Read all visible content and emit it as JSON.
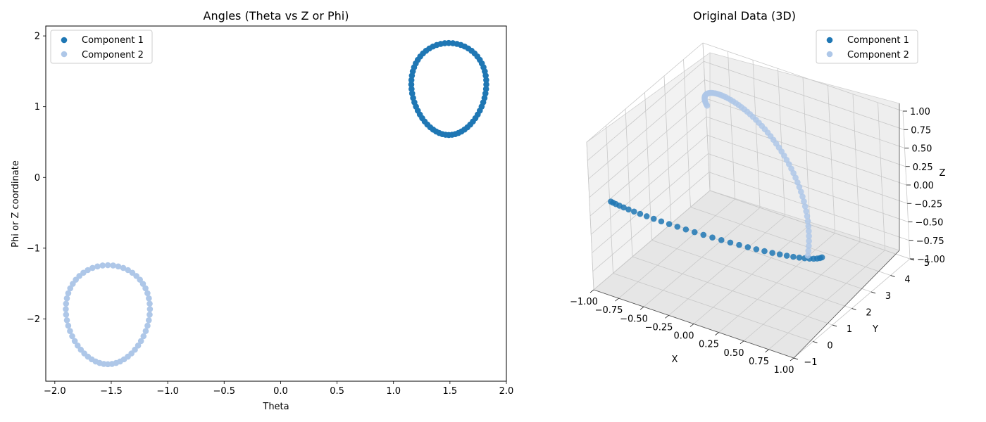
{
  "colors": {
    "component_1": "#1f77b4",
    "component_2": "#aec7e8",
    "axis": "#000000",
    "pane_grid": "#cccccc"
  },
  "chart_data": [
    {
      "type": "scatter",
      "title": "Angles (Theta vs Z or Phi)",
      "xlabel": "Theta",
      "ylabel": "Phi or Z coordinate",
      "xlim": [
        -2.08,
        2.0
      ],
      "ylim": [
        -2.88,
        2.14
      ],
      "xticks": [
        -2.0,
        -1.5,
        -1.0,
        -0.5,
        0.0,
        0.5,
        1.0,
        1.5,
        2.0
      ],
      "xtick_labels": [
        "−2.0",
        "−1.5",
        "−1.0",
        "−0.5",
        "0.0",
        "0.5",
        "1.0",
        "1.5",
        "2.0"
      ],
      "yticks": [
        -2,
        -1,
        0,
        1,
        2
      ],
      "ytick_labels": [
        "−2",
        "−1",
        "0",
        "1",
        "2"
      ],
      "grid": false,
      "legend_position": "upper left",
      "series": [
        {
          "name": "Component 1",
          "color": "#1f77b4",
          "shape": {
            "kind": "ellipse",
            "cx": 1.49,
            "cy": 1.25,
            "rx": 0.33,
            "ry": 0.65,
            "n": 64
          }
        },
        {
          "name": "Component 2",
          "color": "#aec7e8",
          "shape": {
            "kind": "ellipse",
            "cx": -1.53,
            "cy": -1.94,
            "rx": 0.37,
            "ry": 0.7,
            "n": 56
          }
        }
      ]
    },
    {
      "type": "scatter3d",
      "title": "Original Data (3D)",
      "xlabel": "X",
      "ylabel": "Y",
      "zlabel": "Z",
      "xlim": [
        -1.0,
        1.0
      ],
      "ylim": [
        -1.0,
        5.0
      ],
      "zlim": [
        -1.0,
        1.0
      ],
      "xticks": [
        -1.0,
        -0.75,
        -0.5,
        -0.25,
        0.0,
        0.25,
        0.5,
        0.75,
        1.0
      ],
      "xtick_labels": [
        "−1.00",
        "−0.75",
        "−0.50",
        "−0.25",
        "0.00",
        "0.25",
        "0.50",
        "0.75",
        "1.00"
      ],
      "yticks": [
        -1,
        0,
        1,
        2,
        3,
        4,
        5
      ],
      "ytick_labels": [
        "−1",
        "0",
        "1",
        "2",
        "3",
        "4",
        "5"
      ],
      "zticks": [
        -1.0,
        -0.75,
        -0.5,
        -0.25,
        0.0,
        0.25,
        0.5,
        0.75,
        1.0
      ],
      "ztick_labels": [
        "−1.00",
        "−0.75",
        "−0.50",
        "−0.25",
        "0.00",
        "0.25",
        "0.50",
        "0.75",
        "1.00"
      ],
      "grid": true,
      "legend_position": "upper right",
      "series": [
        {
          "name": "Component 1",
          "color": "#1f77b4",
          "shape": {
            "kind": "helix",
            "radius": 1.0,
            "y_start": 0.0,
            "y_end": 0.7,
            "n": 34
          }
        },
        {
          "name": "Component 2",
          "color": "#aec7e8",
          "shape": {
            "kind": "helix",
            "radius": 1.0,
            "y_start": 0.0,
            "y_end": 5.0,
            "n": 64
          }
        }
      ]
    }
  ]
}
